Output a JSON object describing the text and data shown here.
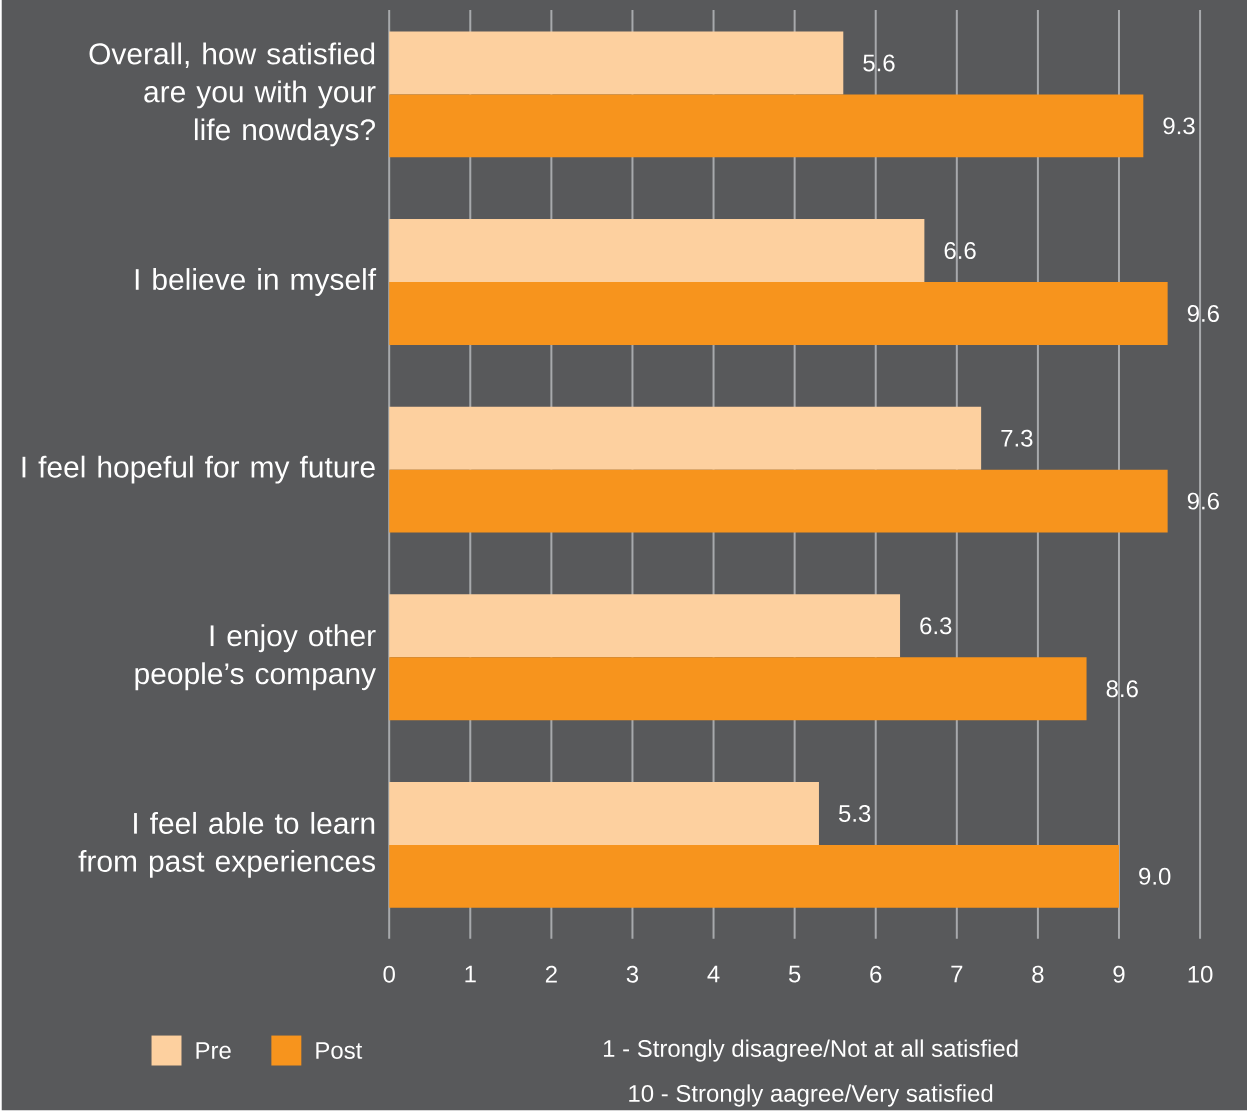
{
  "chart_data": {
    "type": "bar",
    "orientation": "horizontal",
    "categories": [
      "Overall, how satisfied are you with your life nowdays?",
      "I believe in myself",
      "I feel hopeful for my future",
      "I enjoy other people’s company",
      "I feel able to learn from past experiences"
    ],
    "series": [
      {
        "name": "Pre",
        "color": "#fdd09f",
        "values": [
          5.6,
          6.6,
          7.3,
          6.3,
          5.3
        ],
        "value_labels": [
          "5.6",
          "6.6",
          "7.3",
          "6.3",
          "5.3"
        ]
      },
      {
        "name": "Post",
        "color": "#f7941d",
        "values": [
          9.3,
          9.6,
          9.6,
          8.6,
          9.0
        ],
        "value_labels": [
          "9.3",
          "9.6",
          "9.6",
          "8.6",
          "9.0"
        ]
      }
    ],
    "xlim": [
      0,
      10
    ],
    "xticks": [
      0,
      1,
      2,
      3,
      4,
      5,
      6,
      7,
      8,
      9,
      10
    ],
    "grid": "x",
    "legend": "bottom left",
    "annotations": [
      "1 - Strongly disagree/Not at all satisfied",
      "10 - Strongly aagree/Very satisfied"
    ]
  }
}
